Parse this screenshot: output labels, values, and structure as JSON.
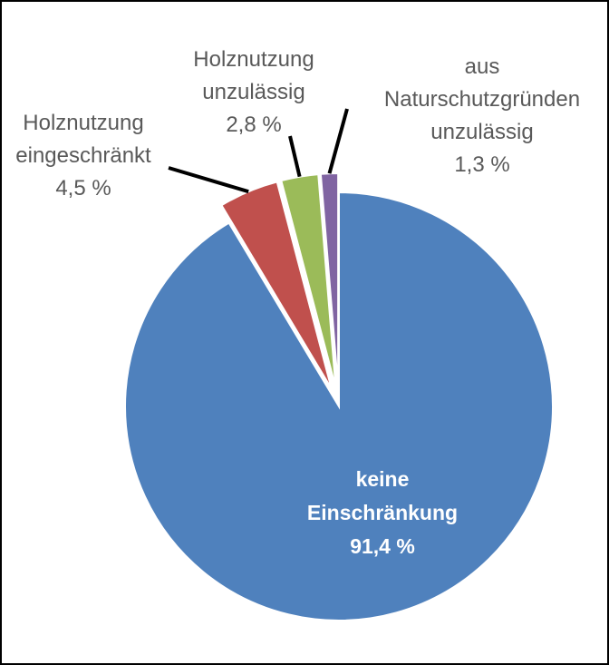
{
  "chart_data": {
    "type": "pie",
    "title": "",
    "exploded": true,
    "slices": [
      {
        "label_lines": [
          "keine",
          "Einschränkung"
        ],
        "value": 91.4,
        "value_label": "91,4 %",
        "color": "#4F81BD"
      },
      {
        "label_lines": [
          "Holznutzung",
          "eingeschränkt"
        ],
        "value": 4.5,
        "value_label": "4,5 %",
        "color": "#C0504D"
      },
      {
        "label_lines": [
          "Holznutzung",
          "unzulässig"
        ],
        "value": 2.8,
        "value_label": "2,8 %",
        "color": "#9BBB59"
      },
      {
        "label_lines": [
          "aus",
          "Naturschutzgründen",
          "unzulässig"
        ],
        "value": 1.3,
        "value_label": "1,3 %",
        "color": "#8064A2"
      }
    ]
  }
}
